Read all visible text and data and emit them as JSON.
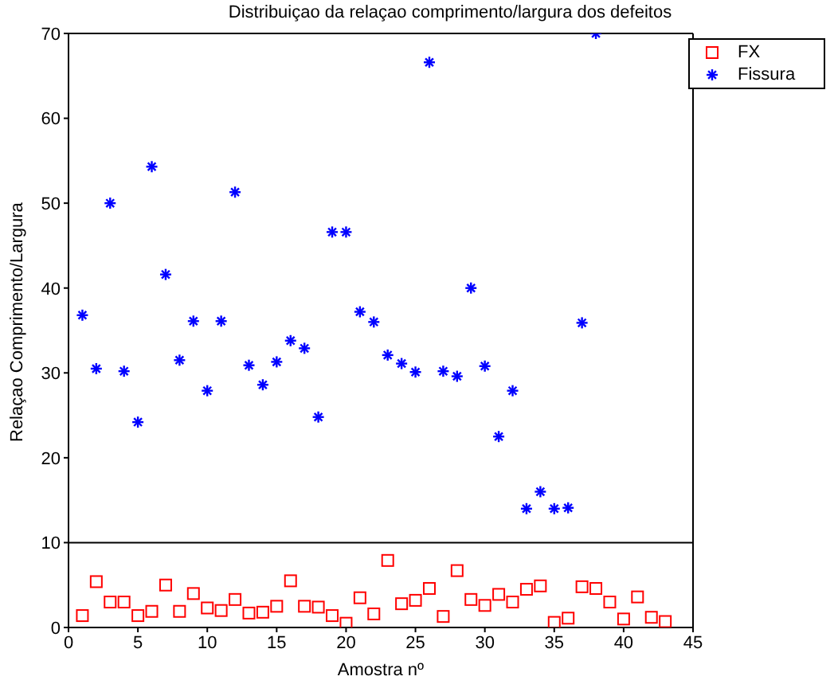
{
  "chart_data": {
    "type": "scatter",
    "title": "Distribuiçao da relaçao comprimento/largura dos defeitos",
    "xlabel": "Amostra nº",
    "ylabel": "Relaçao Comprimento/Largura",
    "x": [
      1,
      2,
      3,
      4,
      5,
      6,
      7,
      8,
      9,
      10,
      11,
      12,
      13,
      14,
      15,
      16,
      17,
      18,
      19,
      20,
      21,
      22,
      23,
      24,
      25,
      26,
      27,
      28,
      29,
      30,
      31,
      32,
      33,
      34,
      35,
      36,
      37,
      38,
      39,
      40,
      41,
      42,
      43
    ],
    "series": [
      {
        "name": "FX",
        "color": "#ff0000",
        "marker": "square",
        "values": [
          1.4,
          5.4,
          3,
          3,
          1.4,
          1.9,
          5,
          1.9,
          4,
          2.3,
          2,
          3.3,
          1.7,
          1.8,
          2.5,
          5.5,
          2.5,
          2.4,
          1.4,
          0.5,
          3.5,
          1.6,
          7.9,
          2.8,
          3.2,
          4.6,
          1.3,
          6.7,
          3.3,
          2.6,
          3.9,
          3,
          4.5,
          4.9,
          0.6,
          1.1,
          4.8,
          4.6,
          3,
          1,
          3.6,
          1.2,
          0.7
        ]
      },
      {
        "name": "Fissura",
        "color": "#0000ff",
        "marker": "cross",
        "values": [
          36.8,
          30.5,
          50,
          30.2,
          24.2,
          54.3,
          41.6,
          31.5,
          36.1,
          27.9,
          36.1,
          51.3,
          30.9,
          28.6,
          31.3,
          33.8,
          32.9,
          24.8,
          46.6,
          46.6,
          37.2,
          36,
          32.1,
          31.1,
          30.1,
          66.6,
          30.2,
          29.6,
          40,
          30.8,
          22.5,
          27.9,
          14,
          16,
          14,
          14.1,
          35.9,
          70,
          null,
          null,
          null,
          null,
          null
        ]
      }
    ],
    "xlim": [
      0,
      45
    ],
    "xticks": [
      0,
      5,
      10,
      15,
      20,
      25,
      30,
      35,
      40,
      45
    ],
    "ylim": [
      0,
      70
    ],
    "yticks": [
      0,
      10,
      20,
      30,
      40,
      50,
      60,
      70
    ],
    "ref_lines": [
      {
        "axis": "y",
        "value": 10,
        "color": "#000000"
      }
    ],
    "legend": "top right",
    "grid": false
  }
}
